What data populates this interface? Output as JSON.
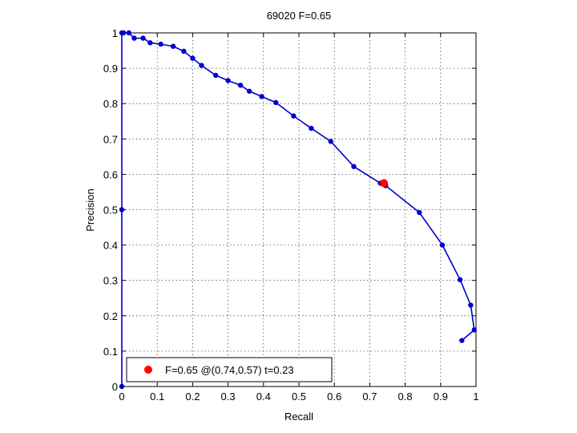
{
  "chart_data": {
    "type": "line",
    "title": "69020 F=0.65",
    "xlabel": "Recall",
    "ylabel": "Precision",
    "xlim": [
      0,
      1
    ],
    "ylim": [
      0,
      1
    ],
    "grid": true,
    "xticks": [
      "0",
      "0.1",
      "0.2",
      "0.3",
      "0.4",
      "0.5",
      "0.6",
      "0.7",
      "0.8",
      "0.9",
      "1"
    ],
    "yticks": [
      "0",
      "0.1",
      "0.2",
      "0.3",
      "0.4",
      "0.5",
      "0.6",
      "0.7",
      "0.8",
      "0.9",
      "1"
    ],
    "series": [
      {
        "color": "#0000cc",
        "x": [
          0.0,
          0.0,
          0.0,
          0.005,
          0.02,
          0.035,
          0.06,
          0.08,
          0.11,
          0.145,
          0.175,
          0.2,
          0.225,
          0.265,
          0.3,
          0.335,
          0.36,
          0.395,
          0.435,
          0.485,
          0.535,
          0.59,
          0.655,
          0.73,
          0.745,
          0.84,
          0.905,
          0.955,
          0.985,
          0.995,
          0.96
        ],
        "y": [
          0.0,
          0.5,
          1.0,
          1.0,
          1.0,
          0.985,
          0.985,
          0.972,
          0.968,
          0.962,
          0.948,
          0.928,
          0.908,
          0.88,
          0.865,
          0.852,
          0.835,
          0.82,
          0.803,
          0.765,
          0.73,
          0.693,
          0.622,
          0.575,
          0.568,
          0.492,
          0.4,
          0.302,
          0.23,
          0.16,
          0.13
        ]
      }
    ],
    "highlight": {
      "x": 0.74,
      "y": 0.575,
      "color": "#ff0000"
    },
    "legend": {
      "position": "bottom-left",
      "label": "F=0.65 @(0.74,0.57) t=0.23"
    }
  }
}
